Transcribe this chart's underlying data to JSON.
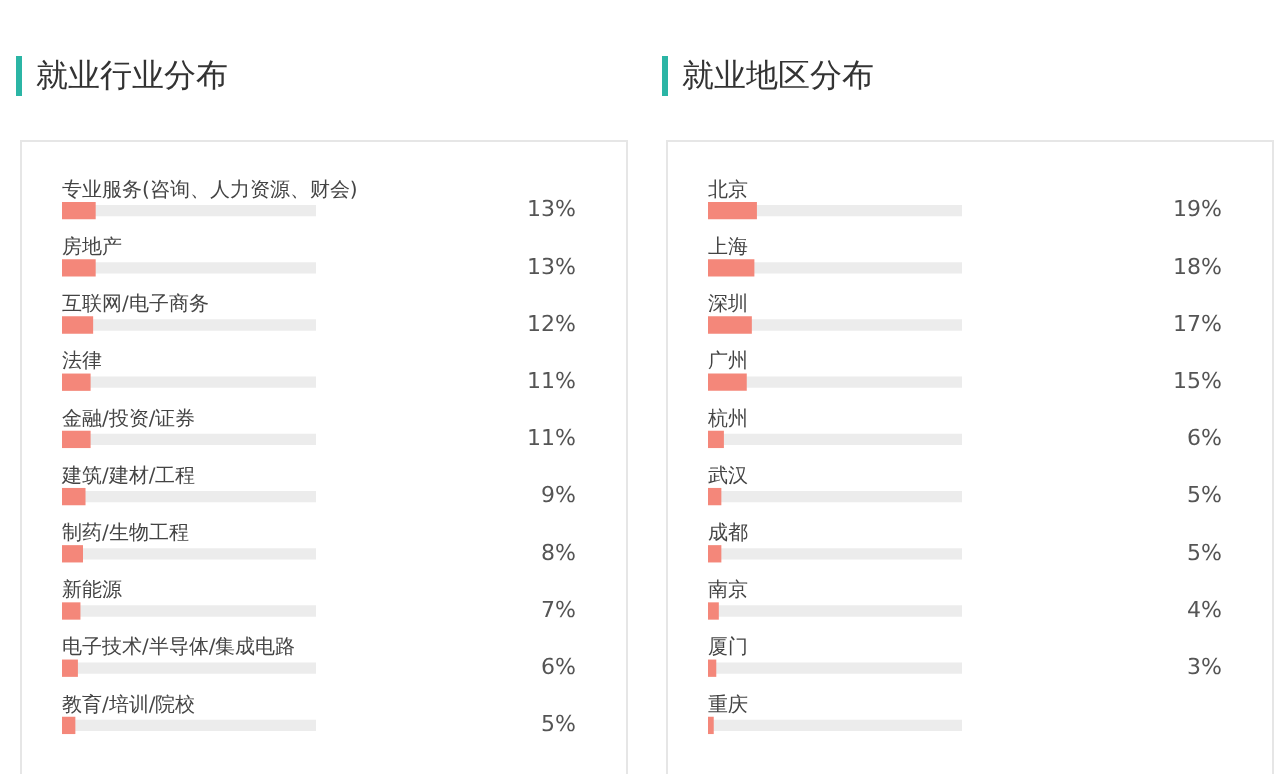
{
  "chart_data": [
    {
      "type": "bar",
      "orientation": "horizontal",
      "title": "就业行业分布",
      "categories": [
        "专业服务(咨询、人力资源、财会)",
        "房地产",
        "互联网/电子商务",
        "法律",
        "金融/投资/证券",
        "建筑/建材/工程",
        "制药/生物工程",
        "新能源",
        "电子技术/半导体/集成电路",
        "教育/培训/院校"
      ],
      "series": [
        {
          "color": "#f4877a",
          "values": [
            13,
            13,
            12,
            11,
            11,
            9,
            8,
            7,
            6,
            5
          ],
          "value_labels": [
            "13%",
            "13%",
            "12%",
            "11%",
            "11%",
            "9%",
            "8%",
            "7%",
            "6%",
            "5%"
          ]
        },
        {
          "color": "#ececec",
          "values": [
            100,
            100,
            100,
            100,
            100,
            100,
            100,
            100,
            100,
            100
          ]
        }
      ],
      "xlim": [
        0,
        100
      ],
      "tick_labels": false
    },
    {
      "type": "bar",
      "orientation": "horizontal",
      "title": "就业地区分布",
      "categories": [
        "北京",
        "上海",
        "深圳",
        "广州",
        "杭州",
        "武汉",
        "成都",
        "南京",
        "厦门",
        "重庆"
      ],
      "series": [
        {
          "color": "#f4877a",
          "values": [
            19,
            18,
            17,
            15,
            6,
            5,
            5,
            4,
            3,
            2
          ],
          "value_labels": [
            "19%",
            "18%",
            "17%",
            "15%",
            "6%",
            "5%",
            "5%",
            "4%",
            "3%",
            null
          ]
        },
        {
          "color": "#ececec",
          "values": [
            100,
            100,
            100,
            100,
            100,
            100,
            100,
            100,
            100,
            100
          ]
        }
      ],
      "xlim": [
        0,
        100
      ],
      "tick_labels": false
    }
  ]
}
